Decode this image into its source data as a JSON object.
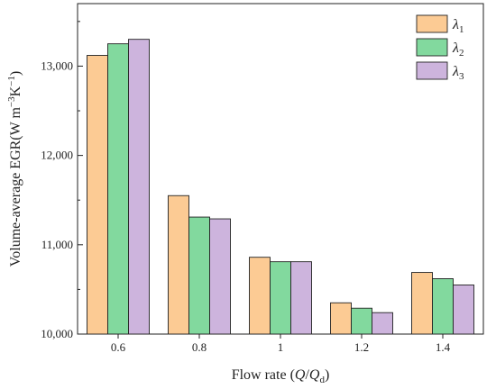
{
  "chart_data": {
    "type": "bar",
    "categories": [
      "0.6",
      "0.8",
      "1",
      "1.2",
      "1.4"
    ],
    "series": [
      {
        "name": "λ1",
        "label_main": "λ",
        "label_sub": "1",
        "color": "#FCCB94",
        "values": [
          13120,
          11550,
          10860,
          10350,
          10690
        ]
      },
      {
        "name": "λ2",
        "label_main": "λ",
        "label_sub": "2",
        "color": "#82D99E",
        "values": [
          13250,
          11310,
          10810,
          10290,
          10620
        ]
      },
      {
        "name": "λ3",
        "label_main": "λ",
        "label_sub": "3",
        "color": "#CDB4DD",
        "values": [
          13300,
          11290,
          10810,
          10240,
          10550
        ]
      }
    ],
    "y_ticks": [
      "10,000",
      "11,000",
      "12,000",
      "13,000"
    ],
    "y_tick_values": [
      10000,
      11000,
      12000,
      13000
    ],
    "ylim": [
      10000,
      13700
    ],
    "xlabel": {
      "prefix": "Flow rate (",
      "q": "Q",
      "slash": "/",
      "qd": "Q",
      "qd_sub": "d",
      "suffix": ")"
    },
    "ylabel": {
      "prefix": "Volume-average  EGR(W m",
      "sup1": "−3",
      "k": "K",
      "sup2": "−1",
      "suffix": ")"
    },
    "legend_position": "top-right",
    "grid": false
  }
}
